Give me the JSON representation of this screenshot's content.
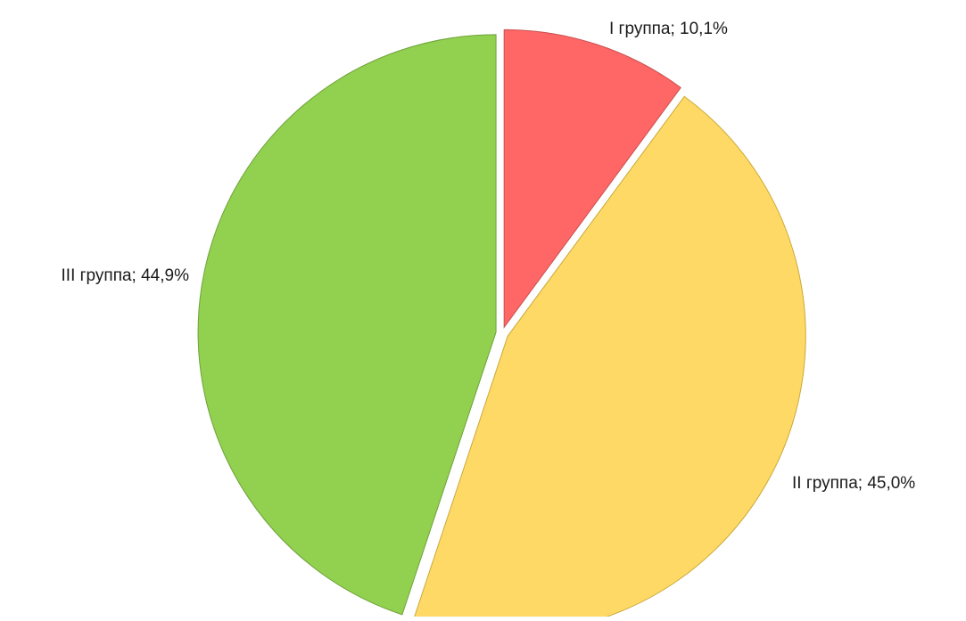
{
  "chart_data": {
    "type": "pie",
    "title": "",
    "slices": [
      {
        "label": "I группа; 10,1%",
        "value": 10.1,
        "color": "#ff6666"
      },
      {
        "label": "II группа; 45,0%",
        "value": 45.0,
        "color": "#ffd966"
      },
      {
        "label": "III группа; 44,9%",
        "value": 44.9,
        "color": "#92d050"
      }
    ],
    "start_angle_deg": 0,
    "direction": "clockwise",
    "exploded": true,
    "legend": "none"
  }
}
